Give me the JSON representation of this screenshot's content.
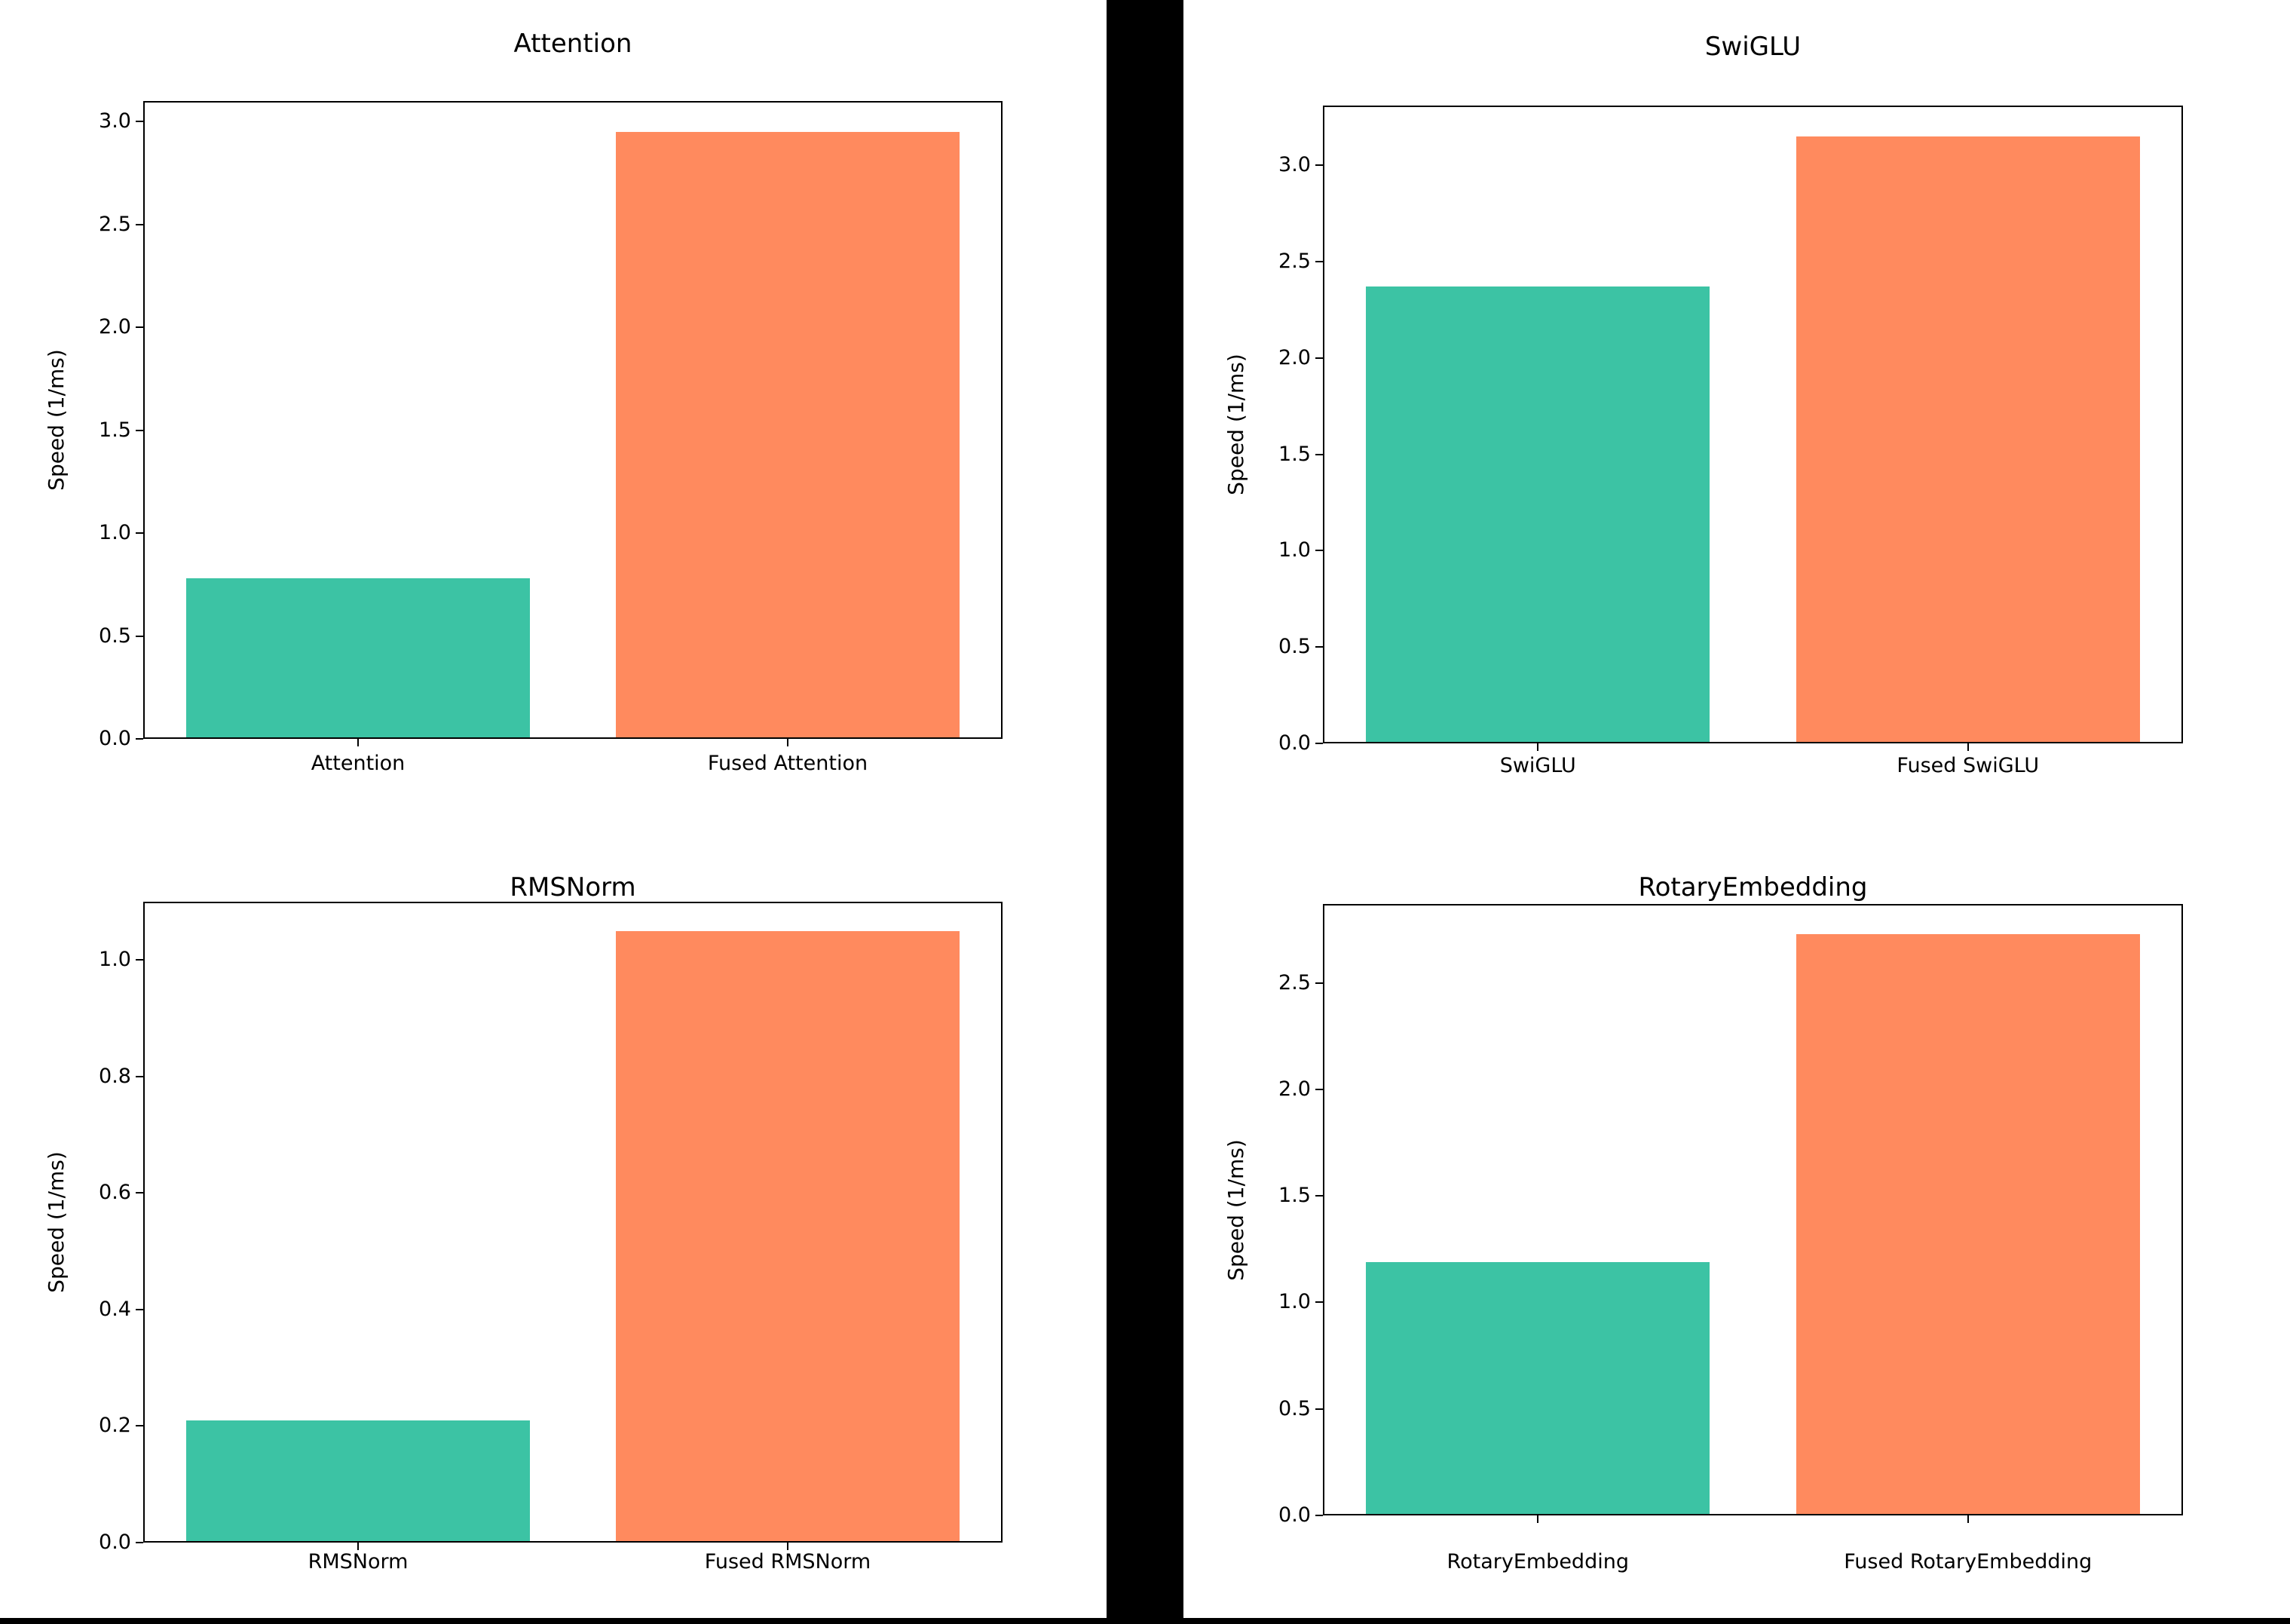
{
  "page": {
    "background_color": "#ffffff",
    "divider_color": "#000000"
  },
  "colors": {
    "base_bar": "#3cc3a4",
    "fused_bar": "#ff8a5e",
    "axis": "#000000",
    "text": "#000000"
  },
  "chart_data": [
    {
      "type": "bar",
      "title": "Attention",
      "xlabel": "",
      "ylabel": "Speed (1/ms)",
      "categories": [
        "Attention",
        "Fused Attention"
      ],
      "values": [
        0.78,
        2.95
      ],
      "bar_colors": [
        "#3cc3a4",
        "#ff8a5e"
      ],
      "yticks": [
        0.0,
        0.5,
        1.0,
        1.5,
        2.0,
        2.5,
        3.0
      ],
      "ylim": [
        0,
        3.1
      ],
      "grid": false,
      "legend": null
    },
    {
      "type": "bar",
      "title": "SwiGLU",
      "xlabel": "",
      "ylabel": "Speed (1/ms)",
      "categories": [
        "SwiGLU",
        "Fused SwiGLU"
      ],
      "values": [
        2.37,
        3.15
      ],
      "bar_colors": [
        "#3cc3a4",
        "#ff8a5e"
      ],
      "yticks": [
        0.0,
        0.5,
        1.0,
        1.5,
        2.0,
        2.5,
        3.0
      ],
      "ylim": [
        0,
        3.31
      ],
      "grid": false,
      "legend": null
    },
    {
      "type": "bar",
      "title": "RMSNorm",
      "xlabel": "",
      "ylabel": "Speed (1/ms)",
      "categories": [
        "RMSNorm",
        "Fused RMSNorm"
      ],
      "values": [
        0.21,
        1.05
      ],
      "bar_colors": [
        "#3cc3a4",
        "#ff8a5e"
      ],
      "yticks": [
        0.0,
        0.2,
        0.4,
        0.6,
        0.8,
        1.0
      ],
      "ylim": [
        0,
        1.1
      ],
      "grid": false,
      "legend": null
    },
    {
      "type": "bar",
      "title": "RotaryEmbedding",
      "xlabel": "",
      "ylabel": "Speed (1/ms)",
      "categories": [
        "RotaryEmbedding",
        "Fused RotaryEmbedding"
      ],
      "values": [
        1.19,
        2.73
      ],
      "bar_colors": [
        "#3cc3a4",
        "#ff8a5e"
      ],
      "yticks": [
        0.0,
        0.5,
        1.0,
        1.5,
        2.0,
        2.5
      ],
      "ylim": [
        0,
        2.87
      ],
      "grid": false,
      "legend": null
    }
  ]
}
